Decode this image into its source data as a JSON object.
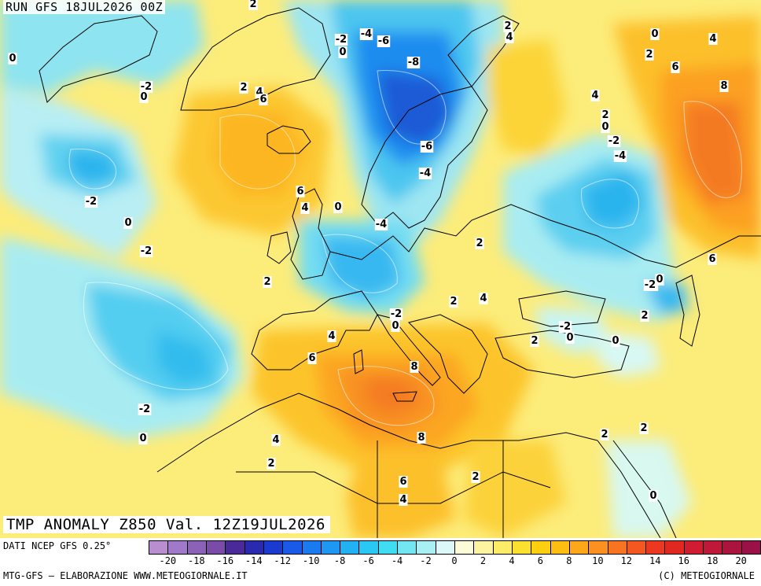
{
  "header": {
    "run_title": "RUN GFS 18JUL2026 00Z",
    "valid_title": "TMP ANOMALY Z850 Val. 12Z19JUL2026"
  },
  "map": {
    "region": "Europe, North Atlantic, North Africa",
    "contour_labels": [
      {
        "text": "2"
      },
      {
        "text": "0"
      },
      {
        "text": "-2"
      },
      {
        "text": "0"
      },
      {
        "text": "2"
      },
      {
        "text": "4"
      },
      {
        "text": "6"
      },
      {
        "text": "-2"
      },
      {
        "text": "0"
      },
      {
        "text": "-4"
      },
      {
        "text": "-6"
      },
      {
        "text": "-8"
      },
      {
        "text": "2"
      },
      {
        "text": "4"
      },
      {
        "text": "0"
      },
      {
        "text": "4"
      },
      {
        "text": "2"
      },
      {
        "text": "6"
      },
      {
        "text": "8"
      },
      {
        "text": "4"
      },
      {
        "text": "2"
      },
      {
        "text": "0"
      },
      {
        "text": "-2"
      },
      {
        "text": "-4"
      },
      {
        "text": "-6"
      },
      {
        "text": "-4"
      },
      {
        "text": "-2"
      },
      {
        "text": "0"
      },
      {
        "text": "6"
      },
      {
        "text": "4"
      },
      {
        "text": "0"
      },
      {
        "text": "-4"
      },
      {
        "text": "-2"
      },
      {
        "text": "2"
      },
      {
        "text": "6"
      },
      {
        "text": "2"
      },
      {
        "text": "-2"
      },
      {
        "text": "0"
      },
      {
        "text": "2"
      },
      {
        "text": "4"
      },
      {
        "text": "-2"
      },
      {
        "text": "-2"
      },
      {
        "text": "0"
      },
      {
        "text": "-2"
      },
      {
        "text": "0"
      },
      {
        "text": "2"
      },
      {
        "text": "4"
      },
      {
        "text": "6"
      },
      {
        "text": "8"
      },
      {
        "text": "0"
      },
      {
        "text": "-2"
      },
      {
        "text": "0"
      },
      {
        "text": "2"
      },
      {
        "text": "-2"
      },
      {
        "text": "0"
      },
      {
        "text": "4"
      },
      {
        "text": "2"
      },
      {
        "text": "8"
      },
      {
        "text": "6"
      },
      {
        "text": "4"
      },
      {
        "text": "2"
      },
      {
        "text": "2"
      },
      {
        "text": "2"
      },
      {
        "text": "0"
      }
    ]
  },
  "footer": {
    "source": "DATI NCEP GFS 0.25°",
    "credit": "MTG-GFS — ELABORAZIONE WWW.METEOGIORNALE.IT",
    "copyright": "(C) METEOGIORNALE",
    "colorbar": {
      "colors": [
        "#b88ed0",
        "#a07ac8",
        "#8c62b8",
        "#7a4ca8",
        "#4a2a98",
        "#2a2ab0",
        "#1a3ad0",
        "#1a5ae8",
        "#1a7af0",
        "#1e98f2",
        "#22b2f4",
        "#2ac8f4",
        "#40dcf2",
        "#72e6f2",
        "#a8f0f4",
        "#dcf8f8",
        "#fcfcd8",
        "#fcf4a0",
        "#fcec68",
        "#fce030",
        "#fcd010",
        "#fcbe10",
        "#fca818",
        "#fc9020",
        "#f87420",
        "#f45820",
        "#ec3820",
        "#e02820",
        "#d01c30",
        "#c01838",
        "#ac1440",
        "#9a1048"
      ],
      "ticks": [
        "-20",
        "-18",
        "-16",
        "-14",
        "-12",
        "-10",
        "-8",
        "-6",
        "-4",
        "-2",
        "0",
        "2",
        "4",
        "6",
        "8",
        "10",
        "12",
        "14",
        "16",
        "18",
        "20"
      ]
    }
  }
}
